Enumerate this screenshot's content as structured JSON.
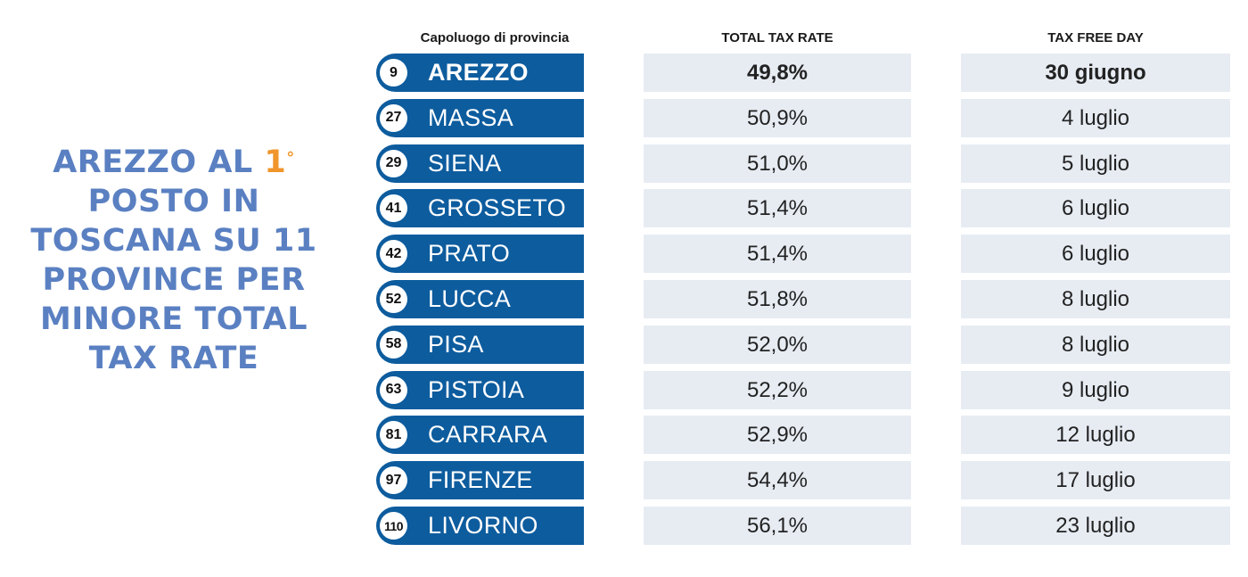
{
  "headline": {
    "part1": "AREZZO AL ",
    "rank": "1",
    "degree": "°",
    "part2": "POSTO IN TOSCANA SU 11 PROVINCE PER MINORE TOTAL TAX RATE"
  },
  "chart_data": {
    "type": "table",
    "columns": [
      "Capoluogo di provincia",
      "TOTAL TAX RATE",
      "TAX FREE DAY"
    ],
    "rows": [
      {
        "rank": "9",
        "province": "AREZZO",
        "rate": "49,8%",
        "day": "30 giugno"
      },
      {
        "rank": "27",
        "province": "MASSA",
        "rate": "50,9%",
        "day": "4 luglio"
      },
      {
        "rank": "29",
        "province": "SIENA",
        "rate": "51,0%",
        "day": "5 luglio"
      },
      {
        "rank": "41",
        "province": "GROSSETO",
        "rate": "51,4%",
        "day": "6 luglio"
      },
      {
        "rank": "42",
        "province": "PRATO",
        "rate": "51,4%",
        "day": "6 luglio"
      },
      {
        "rank": "52",
        "province": "LUCCA",
        "rate": "51,8%",
        "day": "8 luglio"
      },
      {
        "rank": "58",
        "province": "PISA",
        "rate": "52,0%",
        "day": "8 luglio"
      },
      {
        "rank": "63",
        "province": "PISTOIA",
        "rate": "52,2%",
        "day": "9 luglio"
      },
      {
        "rank": "81",
        "province": "CARRARA",
        "rate": "52,9%",
        "day": "12 luglio"
      },
      {
        "rank": "97",
        "province": "FIRENZE",
        "rate": "54,4%",
        "day": "17 luglio"
      },
      {
        "rank": "110",
        "province": "LIVORNO",
        "rate": "56,1%",
        "day": "23 luglio"
      }
    ],
    "highlight_color": "#0d5c9e",
    "cell_color": "#e7ecf3"
  }
}
